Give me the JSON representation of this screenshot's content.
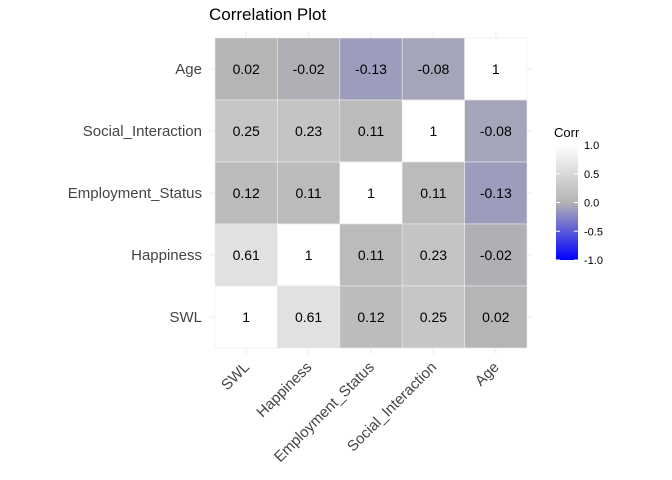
{
  "chart_data": {
    "type": "heatmap",
    "title": "Correlation Plot",
    "xlabel": "",
    "ylabel": "",
    "x_categories": [
      "SWL",
      "Happiness",
      "Employment_Status",
      "Social_Interaction",
      "Age"
    ],
    "y_categories_bottom_to_top": [
      "SWL",
      "Happiness",
      "Employment_Status",
      "Social_Interaction",
      "Age"
    ],
    "matrix_rows_top_to_bottom": [
      {
        "row": "Age",
        "values": [
          0.02,
          -0.02,
          -0.13,
          -0.08,
          1
        ]
      },
      {
        "row": "Social_Interaction",
        "values": [
          0.25,
          0.23,
          0.11,
          1,
          -0.08
        ]
      },
      {
        "row": "Employment_Status",
        "values": [
          0.12,
          0.11,
          1,
          0.11,
          -0.13
        ]
      },
      {
        "row": "Happiness",
        "values": [
          0.61,
          1,
          0.11,
          0.23,
          -0.02
        ]
      },
      {
        "row": "SWL",
        "values": [
          1,
          0.61,
          0.12,
          0.25,
          0.02
        ]
      }
    ],
    "cell_labels_rows_top_to_bottom": [
      [
        "0.02",
        "-0.02",
        "-0.13",
        "-0.08",
        "1"
      ],
      [
        "0.25",
        "0.23",
        "0.11",
        "1",
        "-0.08"
      ],
      [
        "0.12",
        "0.11",
        "1",
        "0.11",
        "-0.13"
      ],
      [
        "0.61",
        "1",
        "0.11",
        "0.23",
        "-0.02"
      ],
      [
        "1",
        "0.61",
        "0.12",
        "0.25",
        "0.02"
      ]
    ],
    "legend": {
      "title": "Corr",
      "position": "right",
      "range": [
        -1,
        1
      ],
      "ticks": [
        "1.0",
        "0.5",
        "0.0",
        "-0.5",
        "-1.0"
      ],
      "colors": {
        "low": "#0000FF",
        "mid": "#B3B3B3",
        "high": "#FFFFFF"
      }
    },
    "grid": true
  }
}
